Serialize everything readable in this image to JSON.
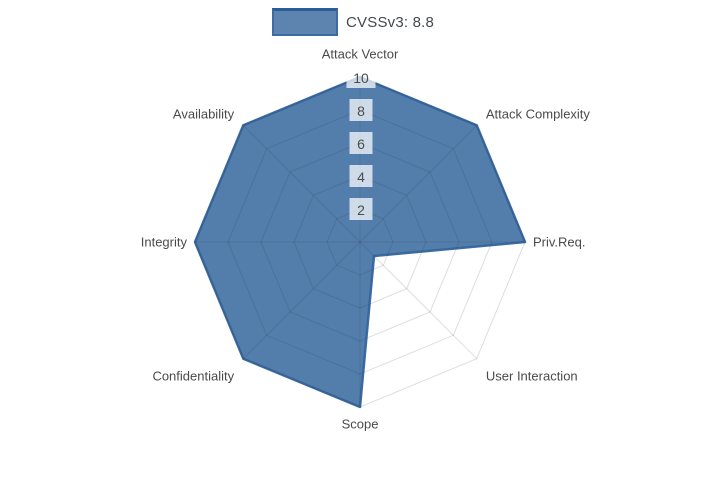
{
  "legend": {
    "label": "CVSSv3: 8.8",
    "swatch_fill": "#4A77A6",
    "swatch_border": "#2B5C95"
  },
  "chart_data": {
    "type": "radar",
    "polar": true,
    "gridshape": "linear-octagon-web",
    "title": "",
    "series": [
      {
        "name": "CVSSv3: 8.8",
        "values": [
          10,
          10,
          10,
          1.2,
          10,
          10,
          10,
          10
        ]
      }
    ],
    "categories": [
      "Attack Vector",
      "Attack Complexity",
      "Priv.Req.",
      "User Interaction",
      "Scope",
      "Confidentiality",
      "Integrity",
      "Availability"
    ],
    "category_order": "clockwise-from-top",
    "ticks": [
      2,
      4,
      6,
      8,
      10
    ],
    "rlim": [
      0,
      10
    ],
    "grid": true,
    "legend_position": "top-center",
    "fill_color": "#4A77A6",
    "line_color": "#35659D",
    "grid_color": "#283246",
    "label_color": "#4A4A4A",
    "tick_color": "#4C4C4C",
    "tick_bg_color": "#FFFFFF",
    "background_color": "#FFFFFF"
  }
}
